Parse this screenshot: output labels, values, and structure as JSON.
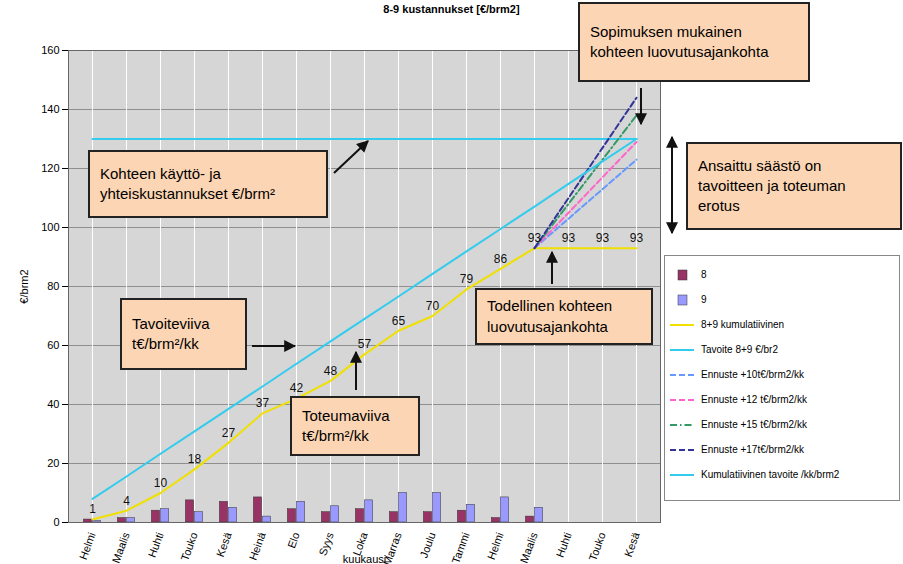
{
  "chart_data": {
    "type": "bar",
    "title": "8-9 kustannukset  [€/brm2]",
    "x_label": "kuukausi",
    "y_label": "€/brm2",
    "categories": [
      "Helmi",
      "Maalis",
      "Huhti",
      "Touko",
      "Kesä",
      "Heinä",
      "Elo",
      "Syys",
      "Loka",
      "Marras",
      "Joulu",
      "Tammi",
      "Helmi",
      "Maalis",
      "Huhti",
      "Touko",
      "Kesä"
    ],
    "ylim": [
      0,
      160
    ],
    "yticks": [
      0,
      20,
      40,
      60,
      80,
      100,
      120,
      140,
      160
    ],
    "grid": true,
    "legend": "right",
    "series": [
      {
        "name": "8",
        "type": "bar",
        "color": "#993366",
        "values": [
          1,
          1.5,
          4,
          7.5,
          7,
          8.5,
          4.5,
          3.5,
          4.5,
          3.5,
          3.5,
          4,
          1.5,
          2,
          null,
          null,
          null
        ]
      },
      {
        "name": "9",
        "type": "bar",
        "color": "#9999ff",
        "values": [
          0.5,
          1.5,
          4.5,
          3.5,
          5,
          2,
          7,
          5.5,
          7.5,
          10,
          10,
          6,
          8.5,
          5,
          null,
          null,
          null
        ]
      },
      {
        "name": "8+9 kumulatiivinen",
        "type": "line",
        "color": "#f0e000",
        "line_style": "solid",
        "data_labels": true,
        "values": [
          1,
          4,
          10,
          18,
          27,
          37,
          42,
          48,
          57,
          65,
          70,
          79,
          86,
          93,
          93,
          93,
          93
        ]
      },
      {
        "name": "Tavoite  8+9 €/br2",
        "type": "line",
        "color": "#33ccee",
        "line_style": "solid",
        "values": [
          130,
          130,
          130,
          130,
          130,
          130,
          130,
          130,
          130,
          130,
          130,
          130,
          130,
          130,
          130,
          130,
          130
        ]
      },
      {
        "name": "Ennuste +10t€/brm2/kk",
        "type": "line",
        "color": "#6699ff",
        "line_style": "dashed",
        "values": [
          null,
          null,
          null,
          null,
          null,
          null,
          null,
          null,
          null,
          null,
          null,
          null,
          null,
          93,
          103,
          113,
          123
        ]
      },
      {
        "name": "Ennuste +12 t€/brm2/kk",
        "type": "line",
        "color": "#ff66cc",
        "line_style": "dashed",
        "values": [
          null,
          null,
          null,
          null,
          null,
          null,
          null,
          null,
          null,
          null,
          null,
          null,
          null,
          93,
          105,
          117,
          129
        ]
      },
      {
        "name": "Ennuste +15 t€/brm2/kk",
        "type": "line",
        "color": "#339966",
        "line_style": "dashdot",
        "values": [
          null,
          null,
          null,
          null,
          null,
          null,
          null,
          null,
          null,
          null,
          null,
          null,
          null,
          93,
          108,
          123,
          138
        ]
      },
      {
        "name": "Ennuste +17t€/brm2/kk",
        "type": "line",
        "color": "#333399",
        "line_style": "dashed",
        "values": [
          null,
          null,
          null,
          null,
          null,
          null,
          null,
          null,
          null,
          null,
          null,
          null,
          null,
          93,
          110,
          127,
          144
        ]
      },
      {
        "name": "Kumulatiivinen tavoite /kk/brm2",
        "type": "line",
        "color": "#33ccee",
        "line_style": "solid",
        "values": [
          8,
          15.6,
          23.3,
          30.9,
          38.5,
          46.1,
          53.8,
          61.4,
          69,
          76.6,
          84.3,
          91.9,
          99.5,
          107.1,
          114.8,
          122.4,
          130
        ]
      }
    ],
    "annotations": [
      {
        "text": [
          "Sopimuksen mukainen",
          "kohteen luovutusajankohta"
        ]
      },
      {
        "text": [
          "Kohteen käyttö- ja",
          "yhteiskustannukset €/brm²"
        ]
      },
      {
        "text": [
          "Ansaittu säästö on",
          "tavoitteen ja toteuman",
          "erotus"
        ]
      },
      {
        "text": [
          "Tavoiteviiva",
          "t€/brm²/kk"
        ]
      },
      {
        "text": [
          "Toteumaviiva",
          "t€/brm²/kk"
        ]
      },
      {
        "text": [
          "Todellinen kohteen",
          "luovutusajankohta"
        ]
      }
    ]
  }
}
